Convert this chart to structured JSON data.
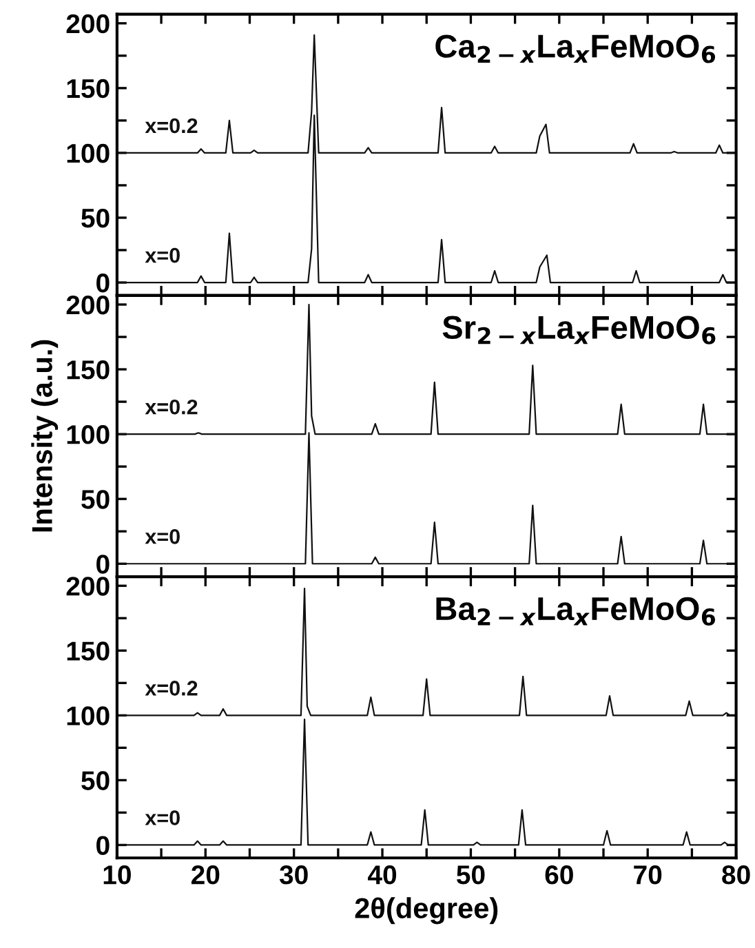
{
  "chart_data": [
    {
      "type": "line",
      "title": "Ca$_{2−x}$La$_{x}$FeMoO$_{6}$",
      "xlim": [
        10,
        80
      ],
      "ylim": [
        -10,
        207
      ],
      "tick_labels": "y",
      "grid": false,
      "legend": false,
      "marker": "none",
      "line_style": "solid",
      "xticks": [
        10,
        {
          "value": 15,
          "label": null
        },
        20,
        {
          "value": 25,
          "label": null
        },
        30,
        {
          "value": 35,
          "label": null
        },
        40,
        {
          "value": 45,
          "label": null
        },
        50,
        {
          "value": 55,
          "label": null
        },
        60,
        {
          "value": 65,
          "label": null
        },
        70,
        {
          "value": 75,
          "label": null
        },
        80
      ],
      "yticks": [
        0,
        {
          "value": 25,
          "label": null
        },
        50,
        {
          "value": 75,
          "label": null
        },
        100,
        {
          "value": 125,
          "label": null
        },
        150,
        {
          "value": 175,
          "label": null
        },
        200
      ],
      "series": [
        {
          "name": "x=0.2",
          "color": "#111111",
          "x": [
            10,
            19.1,
            19.5,
            19.9,
            22.3,
            22.7,
            23.1,
            25.1,
            25.5,
            25.9,
            31.6,
            32.0,
            32.3,
            32.8,
            38.0,
            38.4,
            38.8,
            46.3,
            46.7,
            47.1,
            52.3,
            52.7,
            53.1,
            57.4,
            57.8,
            58.5,
            58.9,
            68.0,
            68.4,
            68.8,
            72.6,
            73.0,
            73.4,
            77.7,
            78.1,
            78.5,
            80
          ],
          "values": [
            100,
            100,
            103,
            100,
            100,
            125,
            100,
            100,
            102,
            100,
            100,
            132,
            191,
            100,
            100,
            104,
            100,
            100,
            135,
            100,
            100,
            105,
            100,
            100,
            113,
            122,
            100,
            100,
            107,
            100,
            100,
            101,
            100,
            100,
            106,
            100,
            100
          ]
        },
        {
          "name": "x=0",
          "color": "#111111",
          "x": [
            10,
            19.1,
            19.5,
            19.9,
            22.3,
            22.7,
            23.1,
            25.1,
            25.5,
            25.9,
            31.6,
            32.0,
            32.3,
            32.8,
            38.0,
            38.4,
            38.8,
            46.3,
            46.7,
            47.1,
            52.3,
            52.7,
            53.1,
            57.4,
            57.8,
            58.6,
            59.0,
            68.3,
            68.7,
            69.1,
            78.1,
            78.5,
            78.9,
            80
          ],
          "values": [
            0,
            0,
            5,
            0,
            0,
            38,
            0,
            0,
            4,
            0,
            0,
            26,
            129,
            0,
            0,
            6,
            0,
            0,
            33,
            0,
            0,
            9,
            0,
            0,
            12,
            21,
            0,
            0,
            9,
            0,
            0,
            6,
            0,
            0
          ]
        }
      ]
    },
    {
      "type": "line",
      "title": "Sr$_{2−x}$La$_{x}$FeMoO$_{6}$",
      "ylabel": "Intensity (a.u.)",
      "xlim": [
        10,
        80
      ],
      "ylim": [
        -10,
        207
      ],
      "tick_labels": "y",
      "grid": false,
      "legend": false,
      "marker": "none",
      "line_style": "solid",
      "xticks": [
        10,
        {
          "value": 15,
          "label": null
        },
        20,
        {
          "value": 25,
          "label": null
        },
        30,
        {
          "value": 35,
          "label": null
        },
        40,
        {
          "value": 45,
          "label": null
        },
        50,
        {
          "value": 55,
          "label": null
        },
        60,
        {
          "value": 65,
          "label": null
        },
        70,
        {
          "value": 75,
          "label": null
        },
        80
      ],
      "yticks": [
        0,
        {
          "value": 25,
          "label": null
        },
        50,
        {
          "value": 75,
          "label": null
        },
        100,
        {
          "value": 125,
          "label": null
        },
        150,
        {
          "value": 175,
          "label": null
        },
        200
      ],
      "series": [
        {
          "name": "x=0.2",
          "color": "#111111",
          "x": [
            10,
            18.8,
            19.2,
            19.6,
            31.3,
            31.7,
            32.0,
            32.4,
            38.8,
            39.2,
            39.6,
            45.5,
            45.9,
            46.3,
            56.6,
            57.0,
            57.4,
            66.6,
            67.0,
            67.4,
            75.9,
            76.3,
            76.7,
            80
          ],
          "values": [
            100,
            100,
            101,
            100,
            100,
            200,
            114,
            100,
            100,
            108,
            100,
            100,
            140,
            100,
            100,
            153,
            100,
            100,
            123,
            100,
            100,
            123,
            100,
            100
          ]
        },
        {
          "name": "x=0",
          "color": "#111111",
          "x": [
            10,
            31.3,
            31.7,
            32.1,
            38.8,
            39.2,
            39.6,
            45.5,
            45.9,
            46.3,
            56.6,
            57.0,
            57.4,
            66.6,
            67.0,
            67.4,
            75.9,
            76.3,
            76.7,
            80
          ],
          "values": [
            0,
            0,
            101,
            0,
            0,
            5,
            0,
            0,
            32,
            0,
            0,
            45,
            0,
            0,
            21,
            0,
            0,
            18,
            0,
            0
          ]
        }
      ]
    },
    {
      "type": "line",
      "title": "Ba$_{2−x}$La$_{x}$FeMoO$_{6}$",
      "xlabel": "2θ(degree)",
      "xlim": [
        10,
        80
      ],
      "ylim": [
        -10,
        207
      ],
      "grid": false,
      "legend": false,
      "marker": "none",
      "line_style": "solid",
      "xticks": [
        10,
        {
          "value": 15,
          "label": null
        },
        20,
        {
          "value": 25,
          "label": null
        },
        30,
        {
          "value": 35,
          "label": null
        },
        40,
        {
          "value": 45,
          "label": null
        },
        50,
        {
          "value": 55,
          "label": null
        },
        60,
        {
          "value": 65,
          "label": null
        },
        70,
        {
          "value": 75,
          "label": null
        },
        80
      ],
      "yticks": [
        0,
        {
          "value": 25,
          "label": null
        },
        50,
        {
          "value": 75,
          "label": null
        },
        100,
        {
          "value": 125,
          "label": null
        },
        150,
        {
          "value": 175,
          "label": null
        },
        200
      ],
      "series": [
        {
          "name": "x=0.2",
          "color": "#111111",
          "x": [
            10,
            18.7,
            19.1,
            19.5,
            21.6,
            22.0,
            22.4,
            30.8,
            31.2,
            31.5,
            31.9,
            38.3,
            38.7,
            39.1,
            44.6,
            45.0,
            45.4,
            55.5,
            55.9,
            56.3,
            65.3,
            65.7,
            66.1,
            74.3,
            74.7,
            75.1,
            78.5,
            78.9,
            79.3,
            80
          ],
          "values": [
            100,
            100,
            102,
            100,
            100,
            105,
            100,
            100,
            198,
            107,
            100,
            100,
            114,
            100,
            100,
            128,
            100,
            100,
            130,
            100,
            100,
            115,
            100,
            100,
            111,
            100,
            100,
            102,
            100,
            100
          ]
        },
        {
          "name": "x=0",
          "color": "#111111",
          "x": [
            10,
            18.7,
            19.1,
            19.5,
            21.6,
            22.0,
            22.4,
            30.8,
            31.2,
            31.6,
            38.3,
            38.7,
            39.1,
            44.4,
            44.8,
            45.2,
            50.3,
            50.7,
            51.1,
            55.4,
            55.8,
            56.2,
            65.0,
            65.4,
            65.8,
            74.0,
            74.4,
            74.8,
            78.3,
            78.7,
            79.1,
            80
          ],
          "values": [
            0,
            0,
            3,
            0,
            0,
            3,
            0,
            0,
            97,
            0,
            0,
            10,
            0,
            0,
            27,
            0,
            0,
            2,
            0,
            0,
            27,
            0,
            0,
            11,
            0,
            0,
            10,
            0,
            0,
            2,
            0,
            0
          ]
        }
      ]
    }
  ]
}
